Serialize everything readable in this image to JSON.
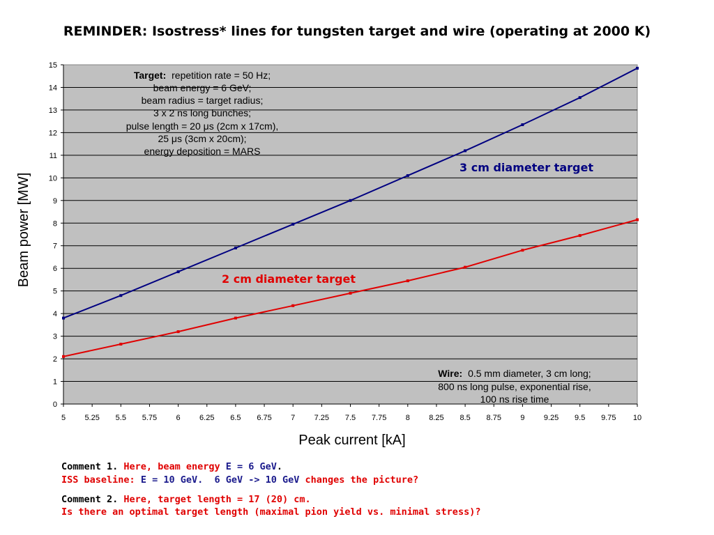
{
  "slide_title": "REMINDER: Isostress* lines for tungsten target and wire (operating at 2000 K)",
  "chart_data": {
    "type": "line",
    "xlabel": "Peak current [kA]",
    "ylabel": "Beam power [MW]",
    "xlim": [
      5,
      10
    ],
    "ylim": [
      0,
      15
    ],
    "x_ticks": [
      "5",
      "5.25",
      "5.5",
      "5.75",
      "6",
      "6.25",
      "6.5",
      "6.75",
      "7",
      "7.25",
      "7.5",
      "7.75",
      "8",
      "8.25",
      "8.5",
      "8.75",
      "9",
      "9.25",
      "9.5",
      "9.75",
      "10"
    ],
    "y_ticks": [
      "0",
      "1",
      "2",
      "3",
      "4",
      "5",
      "6",
      "7",
      "8",
      "9",
      "10",
      "11",
      "12",
      "13",
      "14",
      "15"
    ],
    "grid": "horizontal",
    "plot_background": "#c0c0c0",
    "series": [
      {
        "name": "3 cm diameter target",
        "color": "#000080",
        "x": [
          5,
          5.5,
          6,
          6.5,
          7,
          7.5,
          8,
          8.5,
          9,
          9.5,
          10
        ],
        "y": [
          3.8,
          4.8,
          5.85,
          6.9,
          7.95,
          9.0,
          10.1,
          11.2,
          12.35,
          13.55,
          14.85
        ]
      },
      {
        "name": "2 cm diameter target",
        "color": "#e00000",
        "x": [
          5,
          5.5,
          6,
          6.5,
          7,
          7.5,
          8,
          8.5,
          9,
          9.5,
          10
        ],
        "y": [
          2.1,
          2.65,
          3.2,
          3.8,
          4.35,
          4.9,
          5.45,
          6.05,
          6.8,
          7.45,
          8.15
        ]
      }
    ],
    "annotations": {
      "target_note": {
        "bold": "Target:",
        "lines": [
          "repetition rate = 50 Hz;",
          "beam energy = 6 GeV;",
          "beam radius = target radius;",
          "3 x 2 ns long bunches;",
          "pulse length = 20 μs (2cm x 17cm),",
          "25 μs (3cm x 20cm);",
          "energy deposition = MARS"
        ]
      },
      "wire_note": {
        "bold": "Wire:",
        "lines": [
          "0.5 mm diameter, 3 cm long;",
          "800 ns long pulse, exponential rise,",
          "100 ns rise time"
        ]
      }
    }
  },
  "comments": {
    "c1_prefix": "Comment 1.",
    "c1_red": "Here, beam energy",
    "c1_blue": "E = 6 GeV",
    "c1_end": ".",
    "c1b_red1": "ISS baseline:",
    "c1b_blue1": "E = 10 GeV.  6 GeV -> 10 GeV",
    "c1b_red2": "changes the picture?",
    "c2_prefix": "Comment 2.",
    "c2_red": "Here, target length = 17 (20) cm.",
    "c2b_red": "Is there an optimal target length (maximal pion yield vs. minimal stress)?"
  }
}
